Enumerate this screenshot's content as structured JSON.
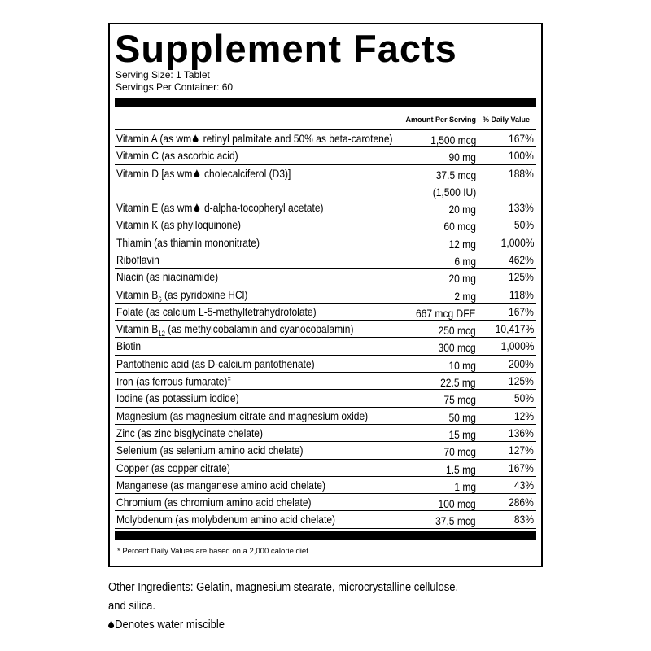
{
  "header": {
    "title": "Supplement Facts",
    "serving_size": "Serving Size: 1 Tablet",
    "servings_per_container": "Servings Per Container: 60"
  },
  "table": {
    "columns": [
      "Amount Per Serving",
      "% Daily Value"
    ],
    "rows": [
      {
        "name": "Vitamin A (as wm",
        "name_end": " retinyl palmitate and 50% as beta-carotene)",
        "amount": "1,500 mcg",
        "dv": "167%"
      },
      {
        "name": "Vitamin C (as ascorbic acid)",
        "amount": "90 mg",
        "dv": "100%"
      },
      {
        "name": "Vitamin D [as wm",
        "name_end": " cholecalciferol (D3)]",
        "amount": "37.5 mcg",
        "amount_note": "(1,500 IU)",
        "dv": "188%"
      },
      {
        "name": "Vitamin E (as wm",
        "name_end": " d-alpha-tocopheryl acetate)",
        "amount": "20 mg",
        "dv": "133%"
      },
      {
        "name": "Vitamin K (as phylloquinone)",
        "amount": "60 mcg",
        "dv": "50%"
      },
      {
        "name": "Thiamin (as thiamin mononitrate)",
        "amount": "12 mg",
        "dv": "1,000%"
      },
      {
        "name": "Riboflavin",
        "amount": "6 mg",
        "dv": "462%"
      },
      {
        "name": "Niacin (as niacinamide)",
        "amount": "20 mg",
        "dv": "125%"
      },
      {
        "name": "Vitamin B",
        "subscript": "6",
        "name_end": " (as pyridoxine HCl)",
        "amount": "2 mg",
        "dv": "118%"
      },
      {
        "name": "Folate (as calcium L-5-methyltetrahydrofolate)",
        "amount": "667 mcg DFE",
        "dv": "167%"
      },
      {
        "name": "Vitamin B",
        "subscript": "12",
        "name_end": " (as methylcobalamin and cyanocobalamin)",
        "amount": "250 mcg",
        "dv": "10,417%"
      },
      {
        "name": "Biotin",
        "amount": "300 mcg",
        "dv": "1,000%"
      },
      {
        "name": "Pantothenic acid (as D-calcium pantothenate)",
        "amount": "10 mg",
        "dv": "200%"
      },
      {
        "name": "Iron (as ferrous fumarate)",
        "superscript": "‡",
        "amount": "22.5 mg",
        "dv": "125%"
      },
      {
        "name": "Iodine (as potassium iodide)",
        "amount": "75 mcg",
        "dv": "50%"
      },
      {
        "name": "Magnesium (as magnesium citrate and magnesium oxide)",
        "amount": "50 mg",
        "dv": "12%"
      },
      {
        "name": "Zinc (as zinc bisglycinate chelate)",
        "amount": "15 mg",
        "dv": "136%"
      },
      {
        "name": "Selenium (as selenium amino acid chelate)",
        "amount": "70 mcg",
        "dv": "127%"
      },
      {
        "name": "Copper (as copper citrate)",
        "amount": "1.5 mg",
        "dv": "167%"
      },
      {
        "name": "Manganese (as manganese amino acid chelate)",
        "amount": "1 mg",
        "dv": "43%"
      },
      {
        "name": "Chromium (as chromium amino acid chelate)",
        "amount": "100 mcg",
        "dv": "286%"
      },
      {
        "name": "Molybdenum (as molybdenum amino acid chelate)",
        "amount": "37.5 mcg",
        "dv": "83%"
      }
    ]
  },
  "footnote": "* Percent Daily Values are based on a 2,000 calorie diet.",
  "other_ingredients": [
    "Other Ingredients: Gelatin, magnesium stearate, microcrystalline cellulose,",
    "and silica."
  ],
  "legend": "Denotes water miscible"
}
